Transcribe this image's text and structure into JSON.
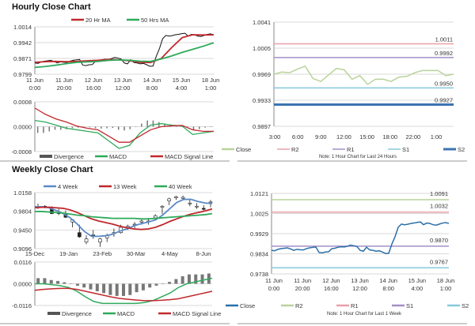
{
  "chart_data": [
    {
      "id": "hourly_price",
      "type": "line",
      "title": "Hourly Close Chart",
      "ylim": [
        0.9799,
        1.0014
      ],
      "yticks": [
        "1.0014",
        "0.9942",
        "0.9871",
        "0.9799"
      ],
      "xticks": [
        [
          "11 Jun",
          "0:00"
        ],
        [
          "11 Jun",
          "20:00"
        ],
        [
          "12 Jun",
          "16:00"
        ],
        [
          "13 Jun",
          "12:00"
        ],
        [
          "14 Jun",
          "8:00"
        ],
        [
          "15 Jun",
          "4:00"
        ],
        [
          "18 Jun",
          "1:00"
        ]
      ],
      "close": [
        0.985,
        0.9848,
        0.9855,
        0.9858,
        0.986,
        0.9862,
        0.9857,
        0.985,
        0.9855,
        0.9853,
        0.9852,
        0.9858,
        0.9862,
        0.9864,
        0.9866,
        0.984,
        0.9838,
        0.9842,
        0.9843,
        0.9858,
        0.986,
        0.9865,
        0.9867,
        0.9866,
        0.987,
        0.9875,
        0.9872,
        0.9868,
        0.985,
        0.9846,
        0.9865,
        0.9852,
        0.985,
        0.9846,
        0.9848,
        0.9842,
        0.9835,
        0.9836,
        0.988,
        0.9915,
        0.996,
        0.9975,
        0.9972,
        0.9974,
        0.9978,
        0.998,
        0.9983,
        0.9985,
        0.9972,
        0.998,
        0.9978,
        0.9972,
        0.997,
        0.9975,
        0.998,
        0.9982,
        0.9978
      ],
      "series": [
        {
          "name": "20 Hr MA",
          "color": "#c0282d",
          "values": [
            0.9853,
            0.9856,
            0.9857,
            0.9856,
            0.9857,
            0.986,
            0.9862,
            0.9866,
            0.9864,
            0.986,
            0.9853,
            0.9852,
            0.987,
            0.992,
            0.9965,
            0.9978,
            0.9977,
            0.9978
          ]
        },
        {
          "name": "50 Hrs MA",
          "color": "#2eaa5c",
          "values": [
            0.983,
            0.9834,
            0.984,
            0.9847,
            0.9853,
            0.9855,
            0.9857,
            0.9862,
            0.9864,
            0.9862,
            0.9858,
            0.9857,
            0.9868,
            0.9882,
            0.9898,
            0.9912,
            0.9926,
            0.9942
          ]
        }
      ]
    },
    {
      "id": "hourly_macd",
      "type": "line",
      "ylim": [
        -0.0008,
        0.0008
      ],
      "yticks": [
        "0.0008",
        "0.0000",
        "-0.0008"
      ],
      "divergence": [
        -0.0002,
        -0.0002,
        -0.00015,
        -0.0001,
        -0.0001,
        -8e-05,
        -5e-05,
        -3e-05,
        -2e-05,
        -2e-05,
        -5e-05,
        -6e-05,
        -5e-05,
        -4e-05,
        -0.0001,
        -0.00012,
        -8e-05,
        0,
        0.0001,
        0.0002,
        0.0002,
        0.00015,
        0.0001,
        5e-05,
        2e-05,
        1e-05,
        0,
        -0.0001,
        -8e-05,
        -3e-05,
        0
      ],
      "series": [
        {
          "name": "MACD",
          "color": "#2eaa5c",
          "values": [
            0.0002,
            0.00015,
            5e-05,
            -5e-05,
            -0.0001,
            -0.00015,
            -0.0002,
            -0.00045,
            -0.0007,
            -0.0006,
            -0.0002,
            5e-05,
            0.0001,
            5e-05,
            2e-05,
            -0.00025,
            -0.0002,
            -0.00015
          ]
        },
        {
          "name": "MACD Signal Line",
          "color": "#c0282d",
          "values": [
            0.0006,
            0.0004,
            0.00025,
            0.00015,
            2e-05,
            -5e-05,
            -0.0001,
            -0.0003,
            -0.0005,
            -0.0005,
            -0.0003,
            -0.0001,
            0,
            3e-05,
            4e-05,
            -0.0001,
            -0.00015,
            -0.00015
          ]
        }
      ],
      "legend": [
        "Divergence",
        "MACD",
        "MACD Signal Line"
      ]
    },
    {
      "id": "weekly_price",
      "type": "candlestick",
      "title": "Weekly Close Chart",
      "ylim": [
        0.9096,
        1.0158
      ],
      "yticks": [
        "1.0158",
        "0.9804",
        "0.9450",
        "0.9096"
      ],
      "xticks": [
        "15-Dec",
        "19-Jan",
        "23-Feb",
        "30-Mar",
        "4-May",
        "8-Jun"
      ],
      "ohlc": [
        [
          0.988,
          0.995,
          0.985,
          0.99
        ],
        [
          0.99,
          0.992,
          0.986,
          0.988
        ],
        [
          0.985,
          0.99,
          0.975,
          0.976
        ],
        [
          0.978,
          0.985,
          0.973,
          0.976
        ],
        [
          0.976,
          0.982,
          0.968,
          0.969
        ],
        [
          0.96,
          0.965,
          0.95,
          0.964
        ],
        [
          0.94,
          0.955,
          0.93,
          0.932
        ],
        [
          0.922,
          0.935,
          0.918,
          0.928
        ],
        [
          0.935,
          0.945,
          0.928,
          0.936
        ],
        [
          0.922,
          0.93,
          0.913,
          0.928
        ],
        [
          0.93,
          0.938,
          0.922,
          0.935
        ],
        [
          0.938,
          0.948,
          0.932,
          0.94
        ],
        [
          0.94,
          0.955,
          0.938,
          0.95
        ],
        [
          0.95,
          0.955,
          0.945,
          0.952
        ],
        [
          0.955,
          0.96,
          0.948,
          0.956
        ],
        [
          0.96,
          0.965,
          0.955,
          0.962
        ],
        [
          0.962,
          0.968,
          0.955,
          0.962
        ],
        [
          0.968,
          0.975,
          0.965,
          0.972
        ],
        [
          0.988,
          0.992,
          0.975,
          0.99
        ],
        [
          1.0,
          1.006,
          0.992,
          1.004
        ],
        [
          1.006,
          1.01,
          1.002,
          1.008
        ],
        [
          1.005,
          1.01,
          1.002,
          1.007
        ],
        [
          0.995,
          1.002,
          0.99,
          0.996
        ],
        [
          0.99,
          0.996,
          0.985,
          0.99
        ],
        [
          0.986,
          0.992,
          0.982,
          0.984
        ],
        [
          0.997,
          1.002,
          0.988,
          0.998
        ]
      ],
      "series": [
        {
          "name": "4 Week",
          "color": "#5b8ac6",
          "values": [
            0.989,
            0.989,
            0.987,
            0.982,
            0.976,
            0.968,
            0.956,
            0.942,
            0.933,
            0.933,
            0.934,
            0.937,
            0.943,
            0.947,
            0.953,
            0.957,
            0.96,
            0.964,
            0.973,
            0.985,
            0.997,
            1.003,
            1.003,
            0.999,
            0.996,
            0.995
          ]
        },
        {
          "name": "13 Week",
          "color": "#c0282d",
          "values": [
            0.987,
            0.988,
            0.988,
            0.987,
            0.986,
            0.983,
            0.978,
            0.972,
            0.966,
            0.962,
            0.959,
            0.956,
            0.952,
            0.949,
            0.947,
            0.946,
            0.947,
            0.95,
            0.955,
            0.961,
            0.966,
            0.971,
            0.975,
            0.978,
            0.981,
            0.985
          ]
        },
        {
          "name": "40 Week",
          "color": "#2eaa5c",
          "values": [
            0.98,
            0.98,
            0.979,
            0.978,
            0.977,
            0.975,
            0.973,
            0.972,
            0.97,
            0.969,
            0.968,
            0.967,
            0.967,
            0.967,
            0.967,
            0.966,
            0.966,
            0.967,
            0.968,
            0.969,
            0.97,
            0.971,
            0.972,
            0.973,
            0.974,
            0.976
          ]
        }
      ]
    },
    {
      "id": "weekly_macd",
      "type": "bar+line",
      "ylim": [
        -0.0116,
        0.0116
      ],
      "yticks": [
        "0.0116",
        "0.0000",
        "-0.0116"
      ],
      "divergence": [
        0.003,
        0.003,
        0.002,
        0.0015,
        0.0008,
        0.0002,
        -0.001,
        -0.002,
        -0.003,
        -0.004,
        -0.005,
        -0.006,
        -0.0065,
        -0.0065,
        -0.006,
        -0.0045,
        -0.0035,
        -0.002,
        -0.001,
        0,
        0.001,
        0.0025,
        0.004,
        0.005,
        0.005,
        0.005,
        0.0055
      ],
      "series": [
        {
          "name": "MACD",
          "color": "#2eaa5c",
          "values": [
            0,
            0,
            -0.0005,
            -0.001,
            -0.002,
            -0.004,
            -0.007,
            -0.0095,
            -0.0105,
            -0.0105,
            -0.0105,
            -0.0105,
            -0.0105,
            -0.01,
            -0.009,
            -0.007,
            -0.005,
            -0.002,
            0,
            0.001,
            0.002,
            0.003
          ]
        },
        {
          "name": "MACD Signal Line",
          "color": "#c0282d",
          "values": [
            -0.0035,
            -0.003,
            -0.0027,
            -0.0025,
            -0.0025,
            -0.003,
            -0.004,
            -0.005,
            -0.006,
            -0.007,
            -0.0078,
            -0.0083,
            -0.0087,
            -0.009,
            -0.009,
            -0.0088,
            -0.0085,
            -0.008,
            -0.007,
            -0.006,
            -0.005,
            -0.004
          ]
        }
      ],
      "legend": [
        "Divergence",
        "MACD",
        "MACD Signal Line"
      ]
    },
    {
      "id": "daily_levels",
      "type": "line",
      "ylim": [
        0.9897,
        1.0041
      ],
      "yticks": [
        "1.0041",
        "1.0005",
        "0.9969",
        "0.9933",
        "0.9897"
      ],
      "xticks": [
        "3:00",
        "6:00",
        "9:00",
        "12:00",
        "15:00",
        "18:00",
        "22:00",
        "1:00"
      ],
      "close": [
        0.9969,
        0.9972,
        0.9971,
        0.9976,
        0.998,
        0.9963,
        0.9959,
        0.9968,
        0.9977,
        0.9975,
        0.9962,
        0.9967,
        0.9955,
        0.9962,
        0.9962,
        0.9959,
        0.9965,
        0.9966,
        0.9971,
        0.9974,
        0.9974,
        0.9974,
        0.9967,
        0.9969
      ],
      "levels": [
        {
          "name": "R2",
          "value": "1.0011",
          "color": "#e8a0a8"
        },
        {
          "name": "R1",
          "value": "0.9992",
          "color": "#a38fc6"
        },
        {
          "name": "S1",
          "value": "0.9950",
          "color": "#86c9dc"
        },
        {
          "name": "S2",
          "value": "0.9927",
          "color": "#3b74b0"
        }
      ],
      "close_color": "#b9d39a",
      "note": "Note: 1 Hour Chart for Last 24 Hours"
    },
    {
      "id": "weekly_levels",
      "type": "line",
      "ylim": [
        0.9738,
        1.0121
      ],
      "yticks": [
        "1.0121",
        "1.0025",
        "0.9929",
        "0.9834",
        "0.9738"
      ],
      "xticks": [
        [
          "11 Jun",
          "0:00"
        ],
        [
          "11 Jun",
          "20:00"
        ],
        [
          "12 Jun",
          "16:00"
        ],
        [
          "13 Jun",
          "12:00"
        ],
        [
          "14 Jun",
          "8:00"
        ],
        [
          "15 Jun",
          "4:00"
        ],
        [
          "18 Jun",
          "1:00"
        ]
      ],
      "levels": [
        {
          "name": "R2",
          "value": "1.0091",
          "color": "#b9d39a"
        },
        {
          "name": "R1",
          "value": "1.0032",
          "color": "#e8a0a8"
        },
        {
          "name": "S1",
          "value": "0.9870",
          "color": "#a38fc6"
        },
        {
          "name": "S2",
          "value": "0.9767",
          "color": "#86c9dc"
        }
      ],
      "close_color": "#2a6fa8",
      "note": "Note: 1 Hour Chart for Last 1 Week"
    }
  ]
}
